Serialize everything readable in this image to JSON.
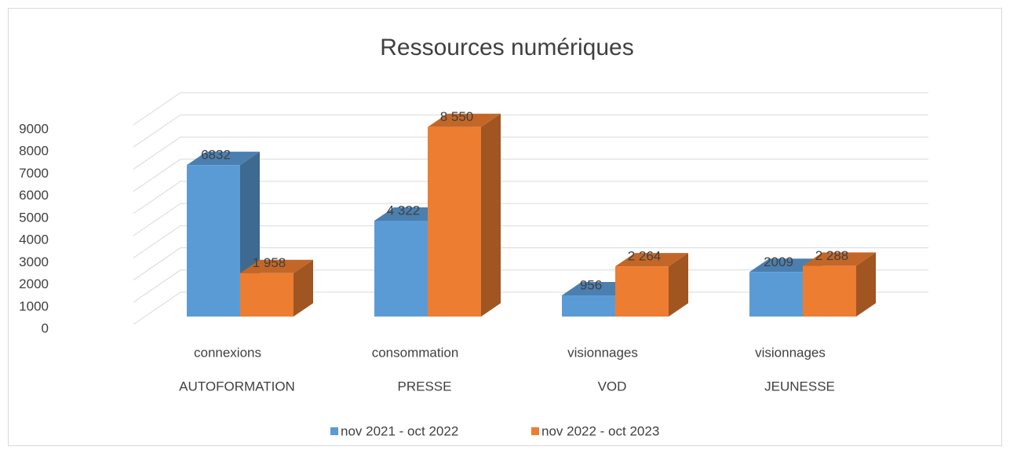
{
  "chart_data": {
    "type": "bar3d",
    "title": "Ressources numériques",
    "categories": [
      "connexions",
      "consommation",
      "visionnages",
      "visionnages"
    ],
    "category_groups": [
      "AUTOFORMATION",
      "PRESSE",
      "VOD",
      "JEUNESSE"
    ],
    "series": [
      {
        "name": "nov 2021 - oct 2022",
        "color": "#5b9bd5",
        "values": [
          6832,
          4322,
          956,
          2009
        ],
        "value_labels": [
          "6832",
          "4 322",
          "956",
          "2009"
        ]
      },
      {
        "name": "nov 2022 - oct 2023",
        "color": "#ed7d31",
        "values": [
          1958,
          8550,
          2264,
          2288
        ],
        "value_labels": [
          "1 958",
          "8 550",
          "2 264",
          "2 288"
        ]
      }
    ],
    "ylim": [
      0,
      9000
    ],
    "yticks": [
      0,
      1000,
      2000,
      3000,
      4000,
      5000,
      6000,
      7000,
      8000,
      9000
    ],
    "grid": true,
    "legend": "bottom"
  }
}
